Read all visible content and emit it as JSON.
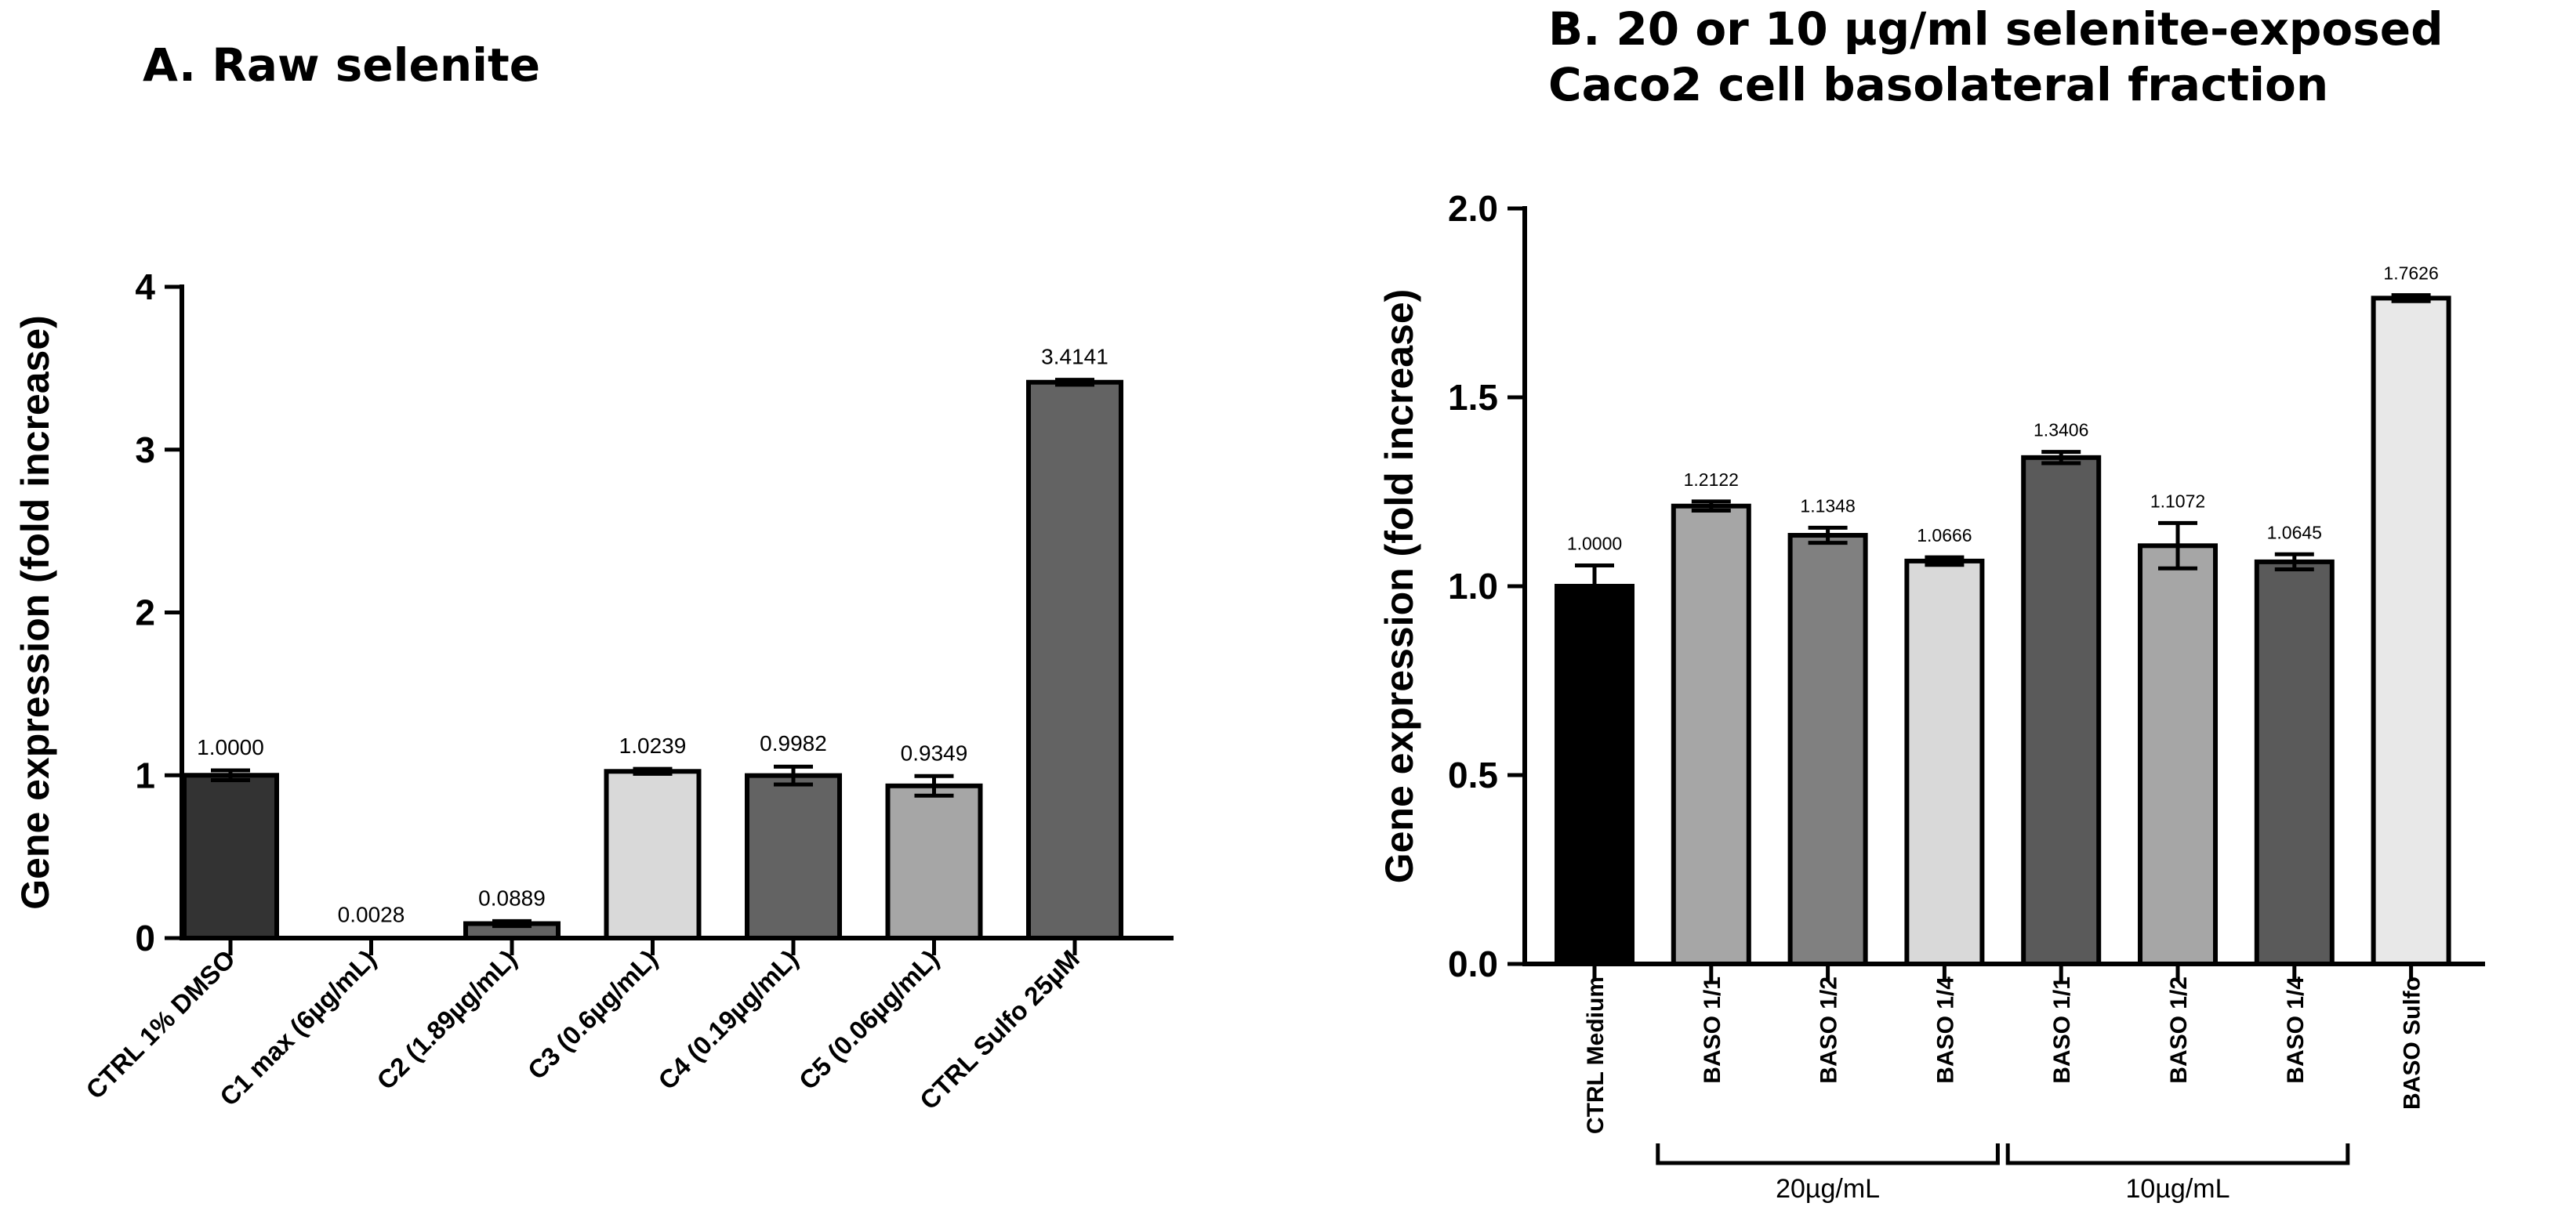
{
  "chart_data": [
    {
      "type": "bar",
      "title": "A. Raw selenite",
      "xlabel": "",
      "ylabel": "Gene expression (fold increase)",
      "ylim": [
        0,
        4
      ],
      "yticks": [
        "0",
        "1",
        "2",
        "3",
        "4"
      ],
      "categories": [
        "CTRL 1% DMSO",
        "C1 max (6µg/mL)",
        "C2 (1.89µg/mL)",
        "C3 (0.6µg/mL)",
        "C4 (0.19µg/mL)",
        "C5 (0.06µg/mL)",
        "CTRL Sulfo 25µM"
      ],
      "values": [
        1.0,
        0.0028,
        0.0889,
        1.0239,
        0.9982,
        0.9349,
        3.4141
      ],
      "errors": [
        0.03,
        0.0,
        0.015,
        0.015,
        0.055,
        0.06,
        0.015
      ],
      "value_labels": [
        "1.0000",
        "0.0028",
        "0.0889",
        "1.0239",
        "0.9982",
        "0.9349",
        "3.4141"
      ],
      "colors": [
        "#333333",
        "#ffffff",
        "#636363",
        "#d9d9d9",
        "#636363",
        "#a6a6a6",
        "#636363"
      ]
    },
    {
      "type": "bar",
      "title": "B. 20 or 10 µg/ml selenite-exposed Caco2 cell basolateral fraction",
      "xlabel": "",
      "ylabel": "Gene expression (fold increase)",
      "ylim": [
        0,
        2
      ],
      "yticks": [
        "0.0",
        "0.5",
        "1.0",
        "1.5",
        "2.0"
      ],
      "categories": [
        "CTRL Medium",
        "BASO 1/1",
        "BASO 1/2",
        "BASO 1/4",
        "BASO 1/1",
        "BASO 1/2",
        "BASO 1/4",
        "BASO Sulfo"
      ],
      "values": [
        1.0,
        1.2122,
        1.1348,
        1.0666,
        1.3406,
        1.1072,
        1.0645,
        1.7626
      ],
      "errors": [
        0.055,
        0.012,
        0.02,
        0.01,
        0.015,
        0.06,
        0.02,
        0.008
      ],
      "value_labels": [
        "1.0000",
        "1.2122",
        "1.1348",
        "1.0666",
        "1.3406",
        "1.1072",
        "1.0645",
        "1.7626"
      ],
      "colors": [
        "#000000",
        "#a6a6a6",
        "#808080",
        "#d9d9d9",
        "#5a5a5a",
        "#a6a6a6",
        "#5a5a5a",
        "#e8e8e8"
      ],
      "groups": [
        {
          "label": "20µg/mL",
          "from": 1,
          "to": 3
        },
        {
          "label": "10µg/mL",
          "from": 4,
          "to": 6
        }
      ]
    }
  ]
}
